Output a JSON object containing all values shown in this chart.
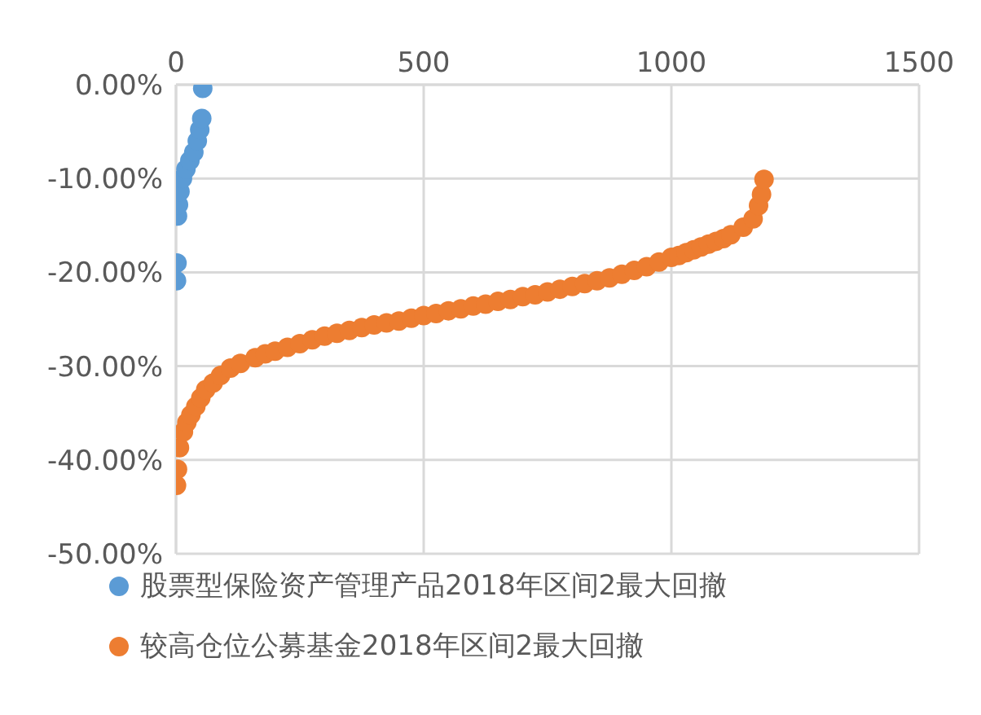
{
  "chart_data": {
    "type": "scatter",
    "xlim": [
      0,
      1500
    ],
    "xticks": [
      0,
      500,
      1000,
      1500
    ],
    "ylim": [
      -50,
      0
    ],
    "yticks": [
      {
        "value": 0,
        "label": "0.00%"
      },
      {
        "value": -10,
        "label": "-10.00%"
      },
      {
        "value": -20,
        "label": "-20.00%"
      },
      {
        "value": -30,
        "label": "-30.00%"
      },
      {
        "value": -40,
        "label": "-40.00%"
      },
      {
        "value": -50,
        "label": "-50.00%"
      }
    ],
    "grid": true,
    "legend": "bottom",
    "marker": "circle",
    "series": [
      {
        "name": "股票型保险资产管理产品2018年区间2最大回撤",
        "color": "#5b9bd5",
        "x": [
          1,
          2,
          3,
          5,
          8,
          13,
          20,
          28,
          36,
          43,
          48,
          52,
          54
        ],
        "values": [
          -20.9,
          -19.0,
          -14.0,
          -12.8,
          -11.4,
          -10.0,
          -9.0,
          -8.1,
          -7.2,
          -6.0,
          -4.8,
          -3.6,
          -0.4
        ]
      },
      {
        "name": "较高仓位公募基金2018年区间2最大回撤",
        "color": "#ed7d31",
        "x": [
          1,
          3,
          7,
          15,
          22,
          30,
          40,
          50,
          60,
          75,
          90,
          110,
          130,
          160,
          180,
          200,
          225,
          250,
          275,
          300,
          325,
          350,
          375,
          400,
          425,
          450,
          475,
          500,
          525,
          550,
          575,
          600,
          625,
          650,
          675,
          700,
          725,
          750,
          775,
          800,
          825,
          850,
          875,
          900,
          925,
          950,
          975,
          1000,
          1015,
          1030,
          1045,
          1060,
          1075,
          1090,
          1105,
          1120,
          1145,
          1165,
          1176,
          1182,
          1187
        ],
        "values": [
          -42.7,
          -41.0,
          -38.7,
          -37.0,
          -36.0,
          -35.2,
          -34.3,
          -33.4,
          -32.5,
          -31.8,
          -31.0,
          -30.2,
          -29.7,
          -29.1,
          -28.7,
          -28.4,
          -28.0,
          -27.6,
          -27.2,
          -26.8,
          -26.5,
          -26.2,
          -25.9,
          -25.6,
          -25.4,
          -25.2,
          -24.9,
          -24.6,
          -24.4,
          -24.1,
          -23.9,
          -23.6,
          -23.4,
          -23.1,
          -22.9,
          -22.6,
          -22.4,
          -22.1,
          -21.8,
          -21.5,
          -21.2,
          -20.9,
          -20.6,
          -20.2,
          -19.8,
          -19.4,
          -18.9,
          -18.4,
          -18.2,
          -17.9,
          -17.6,
          -17.3,
          -17.0,
          -16.7,
          -16.4,
          -16.0,
          -15.2,
          -14.3,
          -12.9,
          -11.7,
          -10.1
        ]
      }
    ]
  }
}
